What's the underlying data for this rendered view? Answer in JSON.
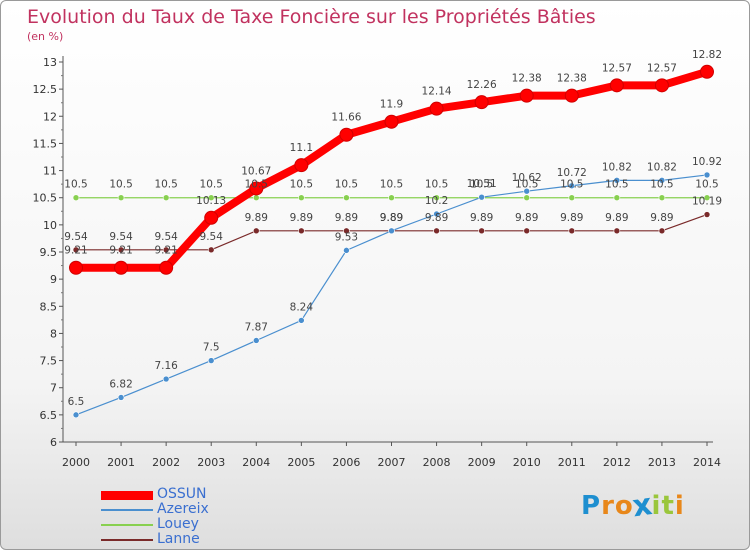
{
  "chart_data": {
    "type": "line",
    "title": "Evolution du Taux de Taxe Foncière sur les Propriétés Bâties",
    "subtitle": "(en %)",
    "xlabel": "",
    "ylabel": "",
    "x": [
      "2000",
      "2001",
      "2002",
      "2003",
      "2004",
      "2005",
      "2006",
      "2007",
      "2008",
      "2009",
      "2010",
      "2011",
      "2012",
      "2013",
      "2014"
    ],
    "ylim": [
      6,
      13
    ],
    "yticks": [
      "6",
      "6.5",
      "7",
      "7.5",
      "8",
      "8.5",
      "9",
      "9.5",
      "10",
      "10.5",
      "11",
      "11.5",
      "12",
      "12.5",
      "13"
    ],
    "grid": false,
    "series": [
      {
        "name": "OSSUN",
        "color": "#ff0000",
        "values": [
          9.21,
          9.21,
          9.21,
          10.13,
          10.67,
          11.1,
          11.66,
          11.9,
          12.14,
          12.26,
          12.38,
          12.38,
          12.57,
          12.57,
          12.82
        ],
        "labels": [
          "9.21",
          "9.21",
          "9.21",
          "10.13",
          "10.67",
          "11.1",
          "11.66",
          "11.9",
          "12.14",
          "12.26",
          "12.38",
          "12.38",
          "12.57",
          "12.57",
          "12.82"
        ]
      },
      {
        "name": "Azereix",
        "color": "#4a8fcf",
        "values": [
          6.5,
          6.82,
          7.16,
          7.5,
          7.87,
          8.24,
          9.53,
          9.89,
          10.2,
          10.51,
          10.62,
          10.72,
          10.82,
          10.82,
          10.92
        ],
        "labels": [
          "6.5",
          "6.82",
          "7.16",
          "7.5",
          "7.87",
          "8.24",
          "9.53",
          "9.89",
          "10.2",
          "10.51",
          "10.62",
          "10.72",
          "10.82",
          "10.82",
          "10.92"
        ]
      },
      {
        "name": "Louey",
        "color": "#88d050",
        "values": [
          10.5,
          10.5,
          10.5,
          10.5,
          10.5,
          10.5,
          10.5,
          10.5,
          10.5,
          10.5,
          10.5,
          10.5,
          10.5,
          10.5,
          10.5
        ],
        "labels": [
          "10.5",
          "10.5",
          "10.5",
          "10.5",
          "10.5",
          "10.5",
          "10.5",
          "10.5",
          "10.5",
          "10.5",
          "10.5",
          "10.5",
          "10.5",
          "10.5",
          "10.5"
        ]
      },
      {
        "name": "Lanne",
        "color": "#7a2a2a",
        "values": [
          9.54,
          9.54,
          9.54,
          9.54,
          9.89,
          9.89,
          9.89,
          9.89,
          9.89,
          9.89,
          9.89,
          9.89,
          9.89,
          9.89,
          10.19
        ],
        "labels": [
          "9.54",
          "9.54",
          "9.54",
          "9.54",
          "9.89",
          "9.89",
          "9.89",
          "9.89",
          "9.89",
          "9.89",
          "9.89",
          "9.89",
          "9.89",
          "9.89",
          "10.19"
        ]
      }
    ],
    "legend_position": "bottom-left"
  },
  "logo": {
    "letters": [
      "P",
      "r",
      "o",
      "x",
      "i",
      "t",
      "i"
    ],
    "colors": [
      "#1e8fd0",
      "#e8871a",
      "#e8871a",
      "#1e8fd0",
      "#9ac63c",
      "#9ac63c",
      "#e8871a"
    ]
  }
}
